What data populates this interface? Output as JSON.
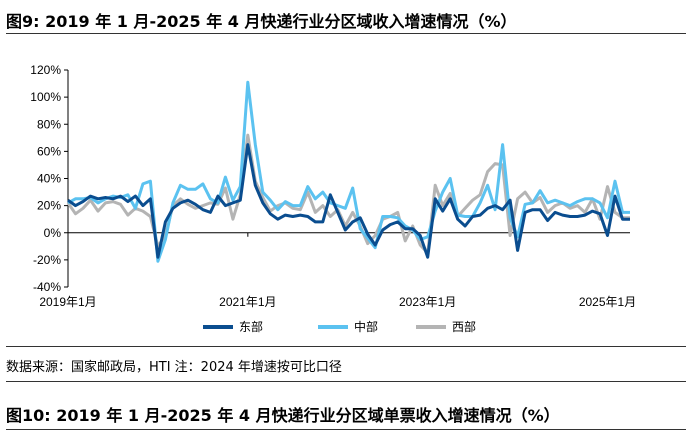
{
  "figure_title": "图9: 2019 年 1 月-2025 年 4 月快递行业分区域收入增速情况（%）",
  "source_text": "数据来源：国家邮政局，HTI    注：2024 年增速按可比口径",
  "next_figure_title": "图10: 2019 年 1 月-2025 年 4 月快递行业分区域单票收入增速情况（%）",
  "colors": {
    "east": "#0a4d8f",
    "central": "#5bc2f0",
    "west": "#b4b4b4"
  },
  "chart_data": {
    "type": "line",
    "title": "",
    "xlabel": "",
    "ylabel": "",
    "ylim": [
      -40,
      120
    ],
    "ytick_labels": [
      "-40%",
      "-20%",
      "0%",
      "20%",
      "40%",
      "60%",
      "80%",
      "100%",
      "120%"
    ],
    "xtick_labels": [
      "2019年1月",
      "2021年1月",
      "2023年1月",
      "2025年1月"
    ],
    "grid": false,
    "legend_position": "bottom",
    "x": [
      "2019-01",
      "2019-02",
      "2019-03",
      "2019-04",
      "2019-05",
      "2019-06",
      "2019-07",
      "2019-08",
      "2019-09",
      "2019-10",
      "2019-11",
      "2019-12",
      "2020-01",
      "2020-02",
      "2020-03",
      "2020-04",
      "2020-05",
      "2020-06",
      "2020-07",
      "2020-08",
      "2020-09",
      "2020-10",
      "2020-11",
      "2020-12",
      "2021-01",
      "2021-02",
      "2021-03",
      "2021-04",
      "2021-05",
      "2021-06",
      "2021-07",
      "2021-08",
      "2021-09",
      "2021-10",
      "2021-11",
      "2021-12",
      "2022-01",
      "2022-02",
      "2022-03",
      "2022-04",
      "2022-05",
      "2022-06",
      "2022-07",
      "2022-08",
      "2022-09",
      "2022-10",
      "2022-11",
      "2022-12",
      "2023-01",
      "2023-02",
      "2023-03",
      "2023-04",
      "2023-05",
      "2023-06",
      "2023-07",
      "2023-08",
      "2023-09",
      "2023-10",
      "2023-11",
      "2023-12",
      "2024-01",
      "2024-02",
      "2024-03",
      "2024-04",
      "2024-05",
      "2024-06",
      "2024-07",
      "2024-08",
      "2024-09",
      "2024-10",
      "2024-11",
      "2024-12",
      "2025-01",
      "2025-02",
      "2025-03",
      "2025-04"
    ],
    "series": [
      {
        "name": "东部",
        "key": "east",
        "values": [
          24,
          20,
          23,
          27,
          25,
          26,
          25,
          27,
          23,
          27,
          20,
          25,
          -18,
          8,
          18,
          22,
          24,
          21,
          17,
          15,
          27,
          20,
          22,
          24,
          65,
          35,
          22,
          14,
          10,
          13,
          12,
          13,
          12,
          8,
          8,
          28,
          15,
          2,
          8,
          11,
          -1,
          -9,
          2,
          6,
          8,
          3,
          3,
          -2,
          -18,
          25,
          16,
          25,
          10,
          5,
          12,
          13,
          18,
          20,
          17,
          24,
          -13,
          15,
          17,
          17,
          9,
          15,
          13,
          12,
          12,
          13,
          16,
          14,
          -2,
          27,
          10,
          10
        ]
      },
      {
        "name": "中部",
        "key": "central",
        "values": [
          22,
          25,
          25,
          26,
          22,
          25,
          27,
          26,
          28,
          18,
          36,
          38,
          -21,
          -5,
          22,
          35,
          32,
          32,
          36,
          25,
          22,
          41,
          24,
          34,
          111,
          65,
          30,
          24,
          17,
          23,
          20,
          20,
          34,
          25,
          30,
          22,
          20,
          18,
          33,
          3,
          -4,
          -11,
          12,
          12,
          11,
          5,
          2,
          -5,
          -3,
          16,
          30,
          40,
          13,
          12,
          12,
          22,
          35,
          17,
          65,
          11,
          -3,
          21,
          22,
          31,
          22,
          24,
          22,
          20,
          23,
          25,
          25,
          22,
          11,
          38,
          15,
          15
        ]
      },
      {
        "name": "西部",
        "key": "west",
        "values": [
          22,
          14,
          18,
          24,
          16,
          22,
          23,
          21,
          13,
          18,
          16,
          12,
          -10,
          -2,
          20,
          25,
          21,
          18,
          20,
          22,
          21,
          33,
          10,
          28,
          72,
          38,
          26,
          16,
          20,
          22,
          18,
          17,
          30,
          15,
          20,
          12,
          17,
          5,
          15,
          5,
          -8,
          -2,
          10,
          12,
          15,
          -6,
          5,
          -9,
          -15,
          35,
          20,
          29,
          12,
          18,
          24,
          28,
          45,
          51,
          50,
          -2,
          25,
          30,
          22,
          26,
          15,
          20,
          22,
          18,
          20,
          15,
          25,
          10,
          34,
          15,
          11,
          11
        ]
      }
    ]
  }
}
